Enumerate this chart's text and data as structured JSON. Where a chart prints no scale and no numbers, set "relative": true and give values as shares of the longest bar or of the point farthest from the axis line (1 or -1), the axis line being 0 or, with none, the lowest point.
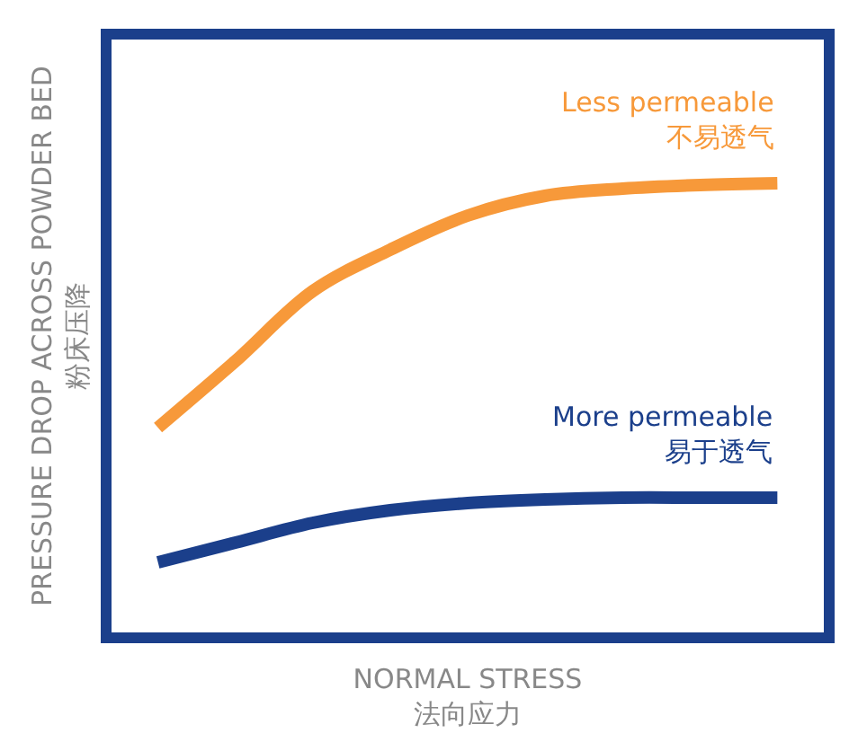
{
  "chart_data": {
    "type": "line",
    "relative": true,
    "xlabel": "NORMAL STRESS\n法向应力",
    "ylabel": "PRESSURE DROP ACROSS POWDER BED\n粉床压降",
    "categories": [
      null,
      null,
      null,
      null,
      null,
      null,
      null,
      null,
      null
    ],
    "legend": false,
    "marker": "none",
    "line_style": "solid",
    "series": [
      {
        "name": "Less permeable\n不易透气",
        "color": "#f7993a",
        "values": [
          0.456,
          0.604,
          0.76,
          0.852,
          0.928,
          0.972,
          0.988,
          0.996,
          1.0
        ]
      },
      {
        "name": "More permeable\n易于透气",
        "color": "#1b3f8b",
        "values": [
          0.156,
          0.2,
          0.244,
          0.272,
          0.288,
          0.296,
          0.3,
          0.3,
          0.3
        ]
      }
    ]
  }
}
